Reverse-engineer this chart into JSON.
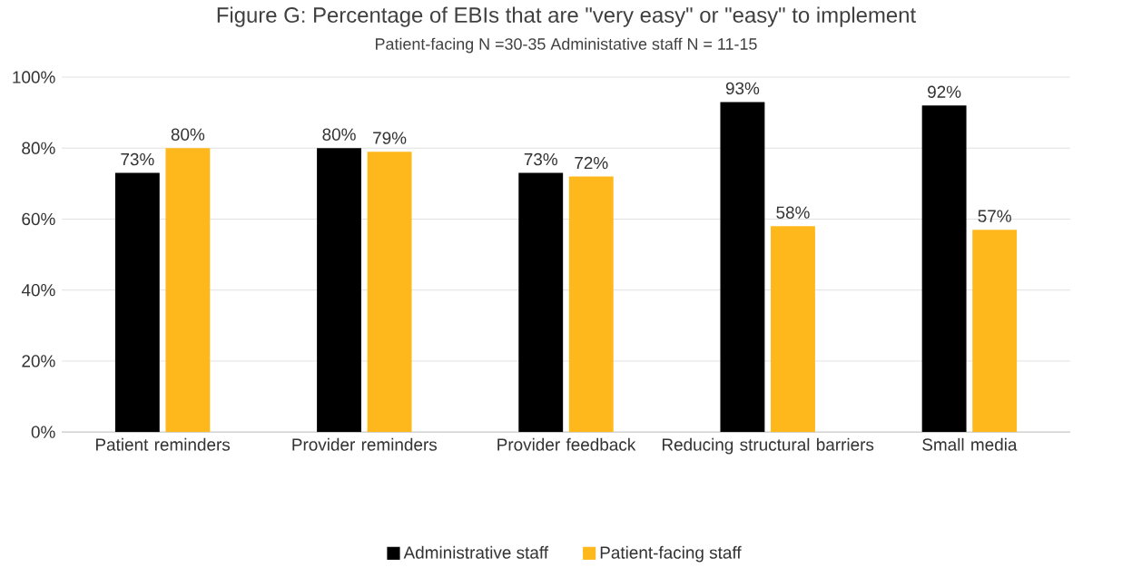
{
  "chart_data": {
    "type": "bar",
    "title": "Figure G: Percentage of EBIs that are \"very easy\" or \"easy\" to implement",
    "subtitle": "Patient-facing N =30-35    Administative staff N = 11-15",
    "categories": [
      "Patient reminders",
      "Provider reminders",
      "Provider feedback",
      "Reducing structural barriers",
      "Small media"
    ],
    "series": [
      {
        "name": "Administrative staff",
        "color": "#000000",
        "values": [
          73,
          80,
          73,
          93,
          92
        ],
        "value_labels": [
          "73%",
          "80%",
          "73%",
          "93%",
          "92%"
        ]
      },
      {
        "name": "Patient-facing staff",
        "color": "#ffb81c",
        "values": [
          80,
          79,
          72,
          58,
          57
        ],
        "value_labels": [
          "80%",
          "79%",
          "72%",
          "58%",
          "57%"
        ]
      }
    ],
    "ylim": [
      0,
      100
    ],
    "yticks": [
      {
        "value": 0,
        "label": "0%"
      },
      {
        "value": 20,
        "label": "20%"
      },
      {
        "value": 40,
        "label": "40%"
      },
      {
        "value": 60,
        "label": "60%"
      },
      {
        "value": 80,
        "label": "80%"
      },
      {
        "value": 100,
        "label": "100%"
      }
    ],
    "grid": "y",
    "legend": "bottom"
  }
}
